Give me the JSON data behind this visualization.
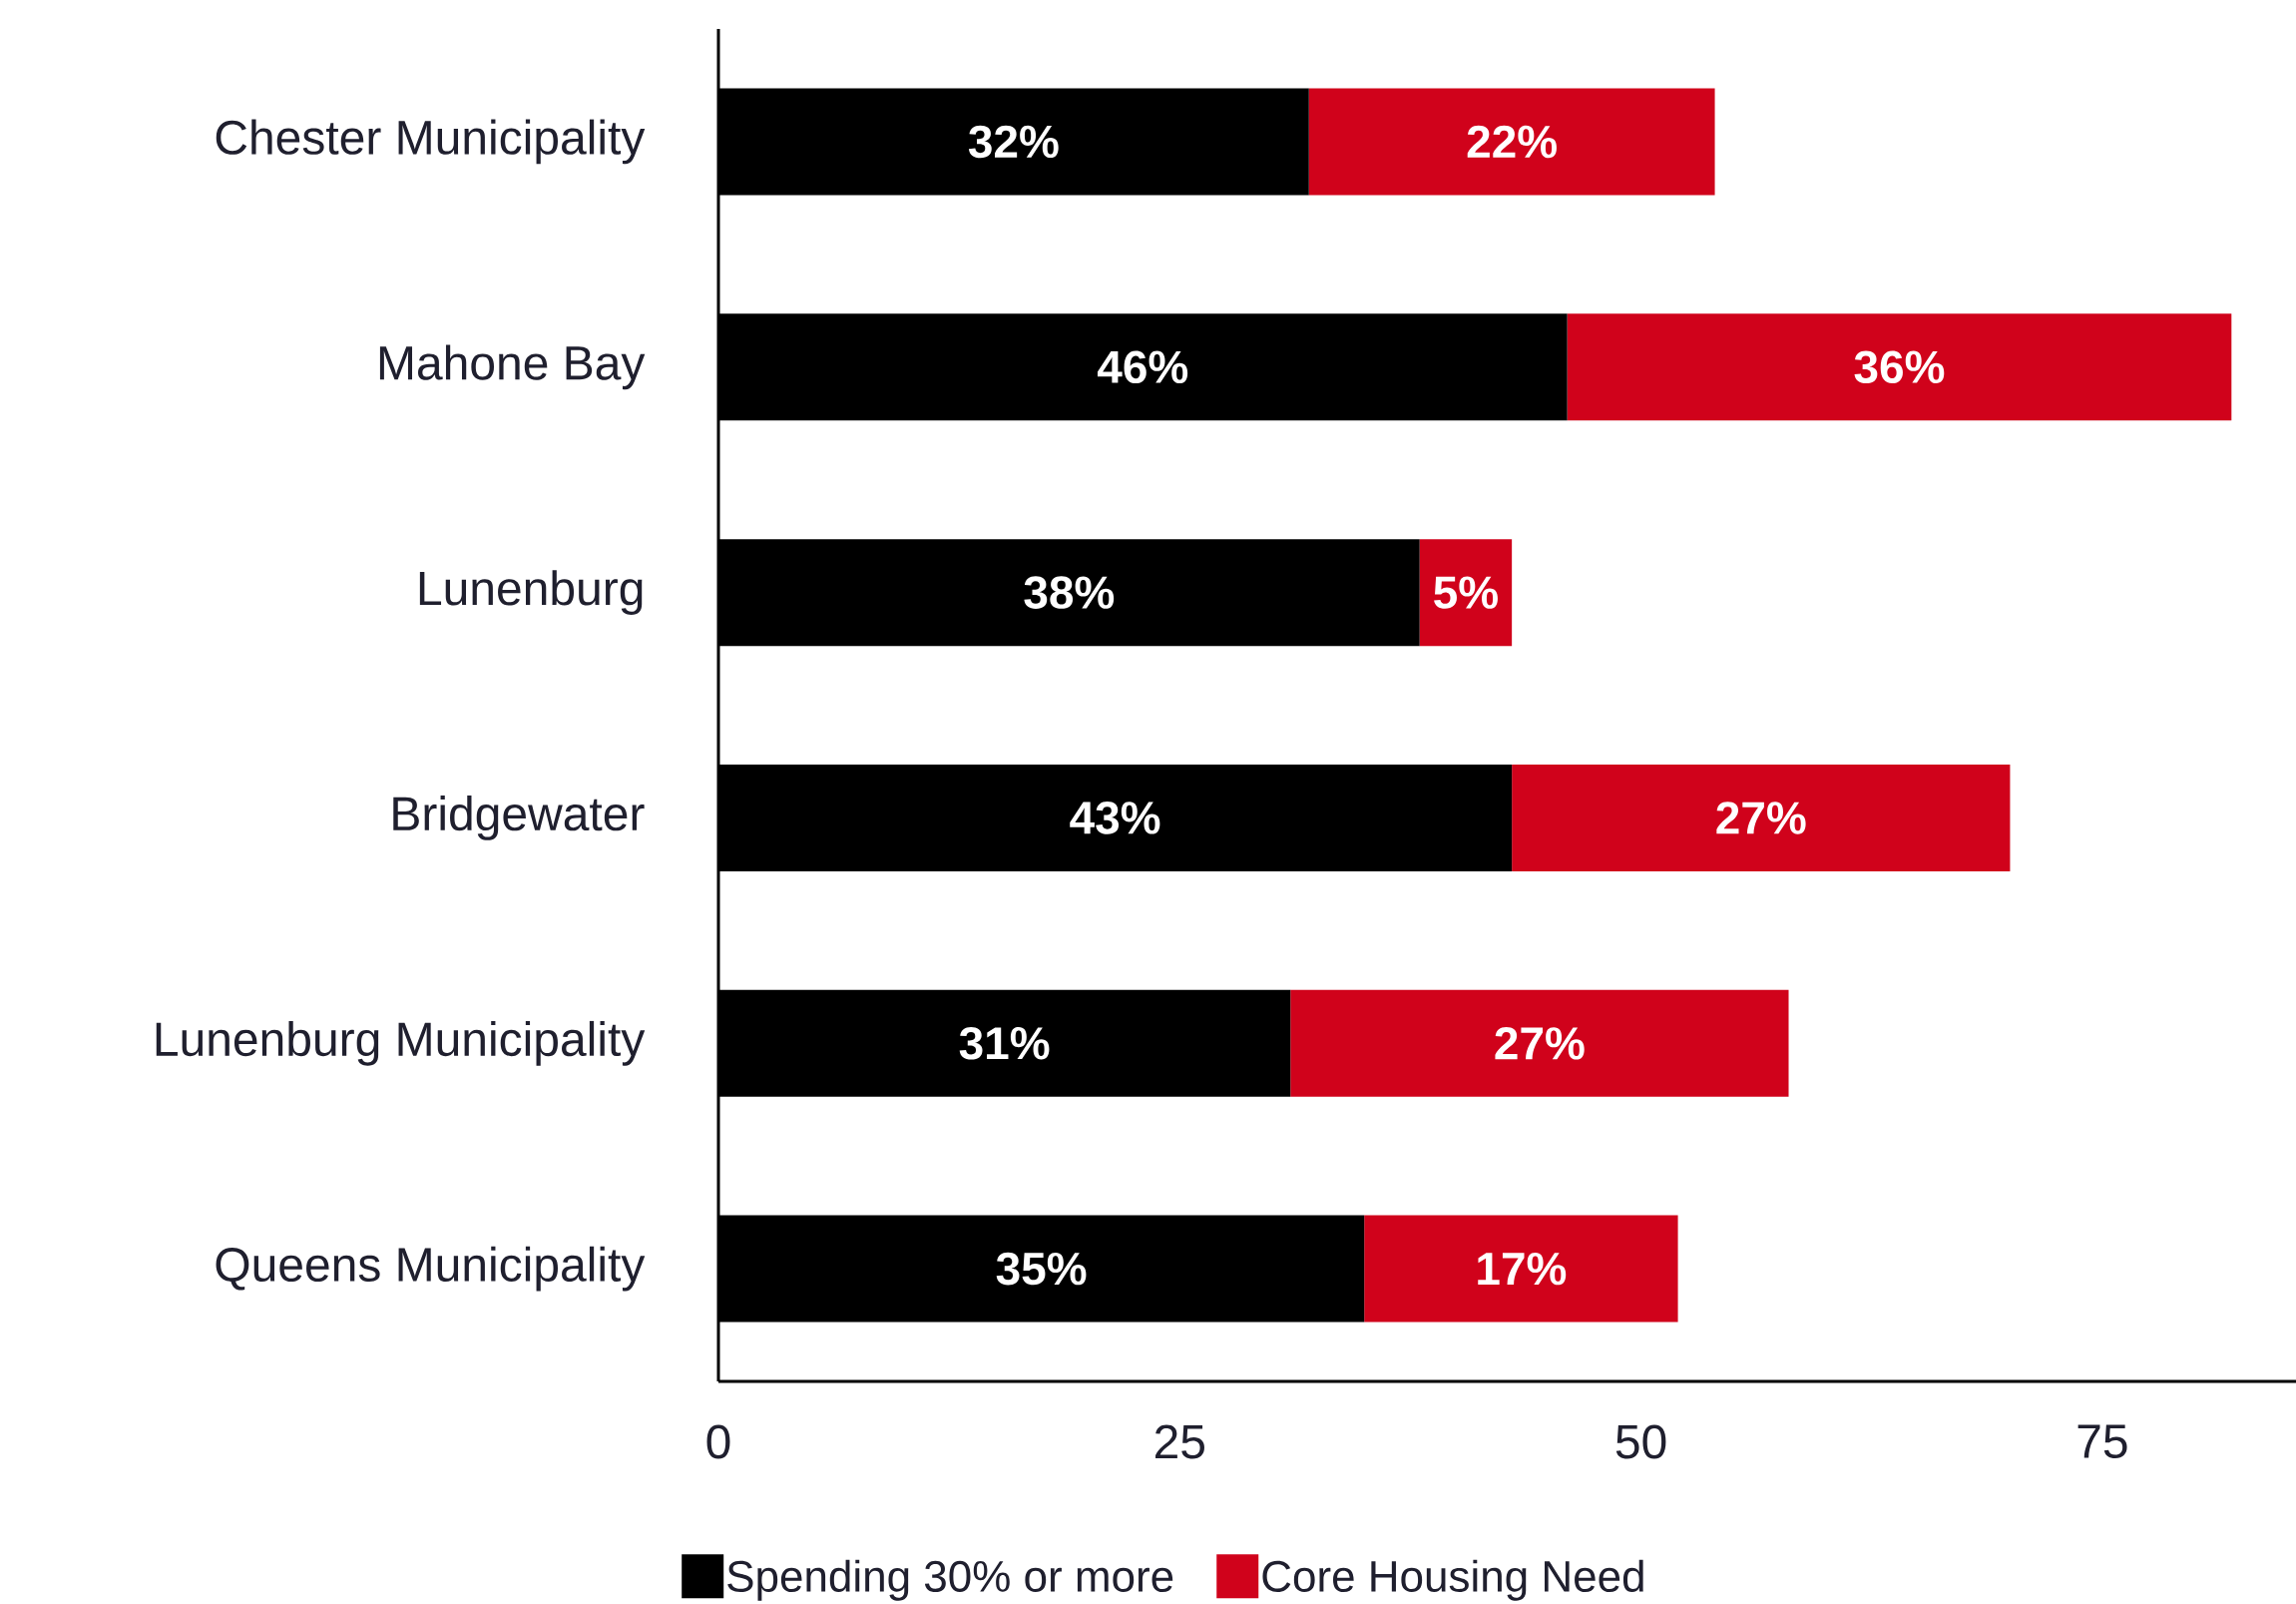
{
  "chart_data": {
    "type": "bar",
    "orientation": "horizontal",
    "stacked": true,
    "categories": [
      "Chester Municipality",
      "Mahone Bay",
      "Lunenburg",
      "Bridgewater",
      "Lunenburg Municipality",
      "Queens Municipality"
    ],
    "series": [
      {
        "name": "Spending 30% or more",
        "color": "#000000",
        "values": [
          32,
          46,
          38,
          43,
          31,
          35
        ],
        "value_labels": [
          "32%",
          "46%",
          "38%",
          "43%",
          "31%",
          "35%"
        ]
      },
      {
        "name": "Core Housing Need",
        "color": "#d0021b",
        "values": [
          22,
          36,
          5,
          27,
          27,
          17
        ],
        "value_labels": [
          "22%",
          "36%",
          "5%",
          "27%",
          "27%",
          "17%"
        ]
      }
    ],
    "xlim": [
      0,
      85.5
    ],
    "xticks": [
      0,
      25,
      50,
      75
    ],
    "grid": false,
    "legend": "bottom"
  }
}
